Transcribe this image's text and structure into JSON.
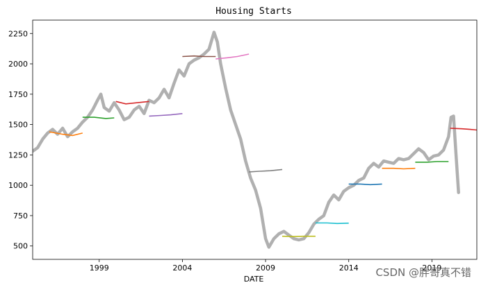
{
  "chart_data": {
    "type": "line",
    "title": "Housing Starts",
    "xlabel": "DATE",
    "ylabel": "",
    "xlim": [
      1995.0,
      2021.7
    ],
    "ylim": [
      390,
      2360
    ],
    "yticks": [
      500,
      750,
      1000,
      1250,
      1500,
      1750,
      2000,
      2250
    ],
    "xticks": [
      {
        "value": 1999,
        "label": "1999"
      },
      {
        "value": 2004,
        "label": "2004"
      },
      {
        "value": 2009,
        "label": "2009"
      },
      {
        "value": 2014,
        "label": "2014"
      },
      {
        "value": 2019,
        "label": "2019"
      }
    ],
    "grid": false,
    "actual": {
      "color": "#b0b0b0",
      "points": [
        [
          1995.0,
          1280
        ],
        [
          1995.3,
          1310
        ],
        [
          1995.6,
          1380
        ],
        [
          1995.9,
          1430
        ],
        [
          1996.2,
          1460
        ],
        [
          1996.5,
          1420
        ],
        [
          1996.8,
          1470
        ],
        [
          1997.1,
          1400
        ],
        [
          1997.4,
          1440
        ],
        [
          1997.7,
          1470
        ],
        [
          1998.0,
          1520
        ],
        [
          1998.3,
          1560
        ],
        [
          1998.6,
          1620
        ],
        [
          1998.9,
          1700
        ],
        [
          1999.1,
          1750
        ],
        [
          1999.3,
          1640
        ],
        [
          1999.6,
          1610
        ],
        [
          1999.9,
          1680
        ],
        [
          2000.2,
          1620
        ],
        [
          2000.5,
          1540
        ],
        [
          2000.8,
          1560
        ],
        [
          2001.1,
          1620
        ],
        [
          2001.4,
          1650
        ],
        [
          2001.7,
          1590
        ],
        [
          2002.0,
          1700
        ],
        [
          2002.3,
          1680
        ],
        [
          2002.6,
          1720
        ],
        [
          2002.9,
          1790
        ],
        [
          2003.2,
          1720
        ],
        [
          2003.5,
          1840
        ],
        [
          2003.8,
          1950
        ],
        [
          2004.1,
          1900
        ],
        [
          2004.4,
          2000
        ],
        [
          2004.7,
          2030
        ],
        [
          2005.0,
          2050
        ],
        [
          2005.3,
          2080
        ],
        [
          2005.6,
          2120
        ],
        [
          2005.9,
          2260
        ],
        [
          2006.1,
          2180
        ],
        [
          2006.3,
          2000
        ],
        [
          2006.6,
          1800
        ],
        [
          2006.9,
          1620
        ],
        [
          2007.2,
          1500
        ],
        [
          2007.5,
          1380
        ],
        [
          2007.8,
          1200
        ],
        [
          2008.1,
          1060
        ],
        [
          2008.4,
          960
        ],
        [
          2008.7,
          810
        ],
        [
          2009.0,
          560
        ],
        [
          2009.2,
          490
        ],
        [
          2009.5,
          560
        ],
        [
          2009.8,
          600
        ],
        [
          2010.1,
          620
        ],
        [
          2010.4,
          590
        ],
        [
          2010.7,
          560
        ],
        [
          2011.0,
          550
        ],
        [
          2011.3,
          560
        ],
        [
          2011.6,
          610
        ],
        [
          2011.9,
          680
        ],
        [
          2012.2,
          720
        ],
        [
          2012.5,
          750
        ],
        [
          2012.8,
          860
        ],
        [
          2013.1,
          920
        ],
        [
          2013.4,
          880
        ],
        [
          2013.7,
          950
        ],
        [
          2014.0,
          980
        ],
        [
          2014.3,
          1000
        ],
        [
          2014.6,
          1040
        ],
        [
          2014.9,
          1060
        ],
        [
          2015.2,
          1140
        ],
        [
          2015.5,
          1180
        ],
        [
          2015.8,
          1150
        ],
        [
          2016.1,
          1200
        ],
        [
          2016.4,
          1190
        ],
        [
          2016.7,
          1180
        ],
        [
          2017.0,
          1220
        ],
        [
          2017.3,
          1210
        ],
        [
          2017.6,
          1220
        ],
        [
          2017.9,
          1260
        ],
        [
          2018.2,
          1300
        ],
        [
          2018.5,
          1270
        ],
        [
          2018.8,
          1210
        ],
        [
          2019.1,
          1240
        ],
        [
          2019.4,
          1250
        ],
        [
          2019.7,
          1290
        ],
        [
          2020.0,
          1400
        ],
        [
          2020.15,
          1560
        ],
        [
          2020.3,
          1570
        ],
        [
          2020.45,
          1250
        ],
        [
          2020.6,
          940
        ]
      ]
    },
    "series": [
      {
        "color": "#ff7f0e",
        "points": [
          [
            1996.0,
            1440
          ],
          [
            1996.8,
            1420
          ],
          [
            1997.4,
            1410
          ],
          [
            1998.0,
            1430
          ]
        ]
      },
      {
        "color": "#2ca02c",
        "points": [
          [
            1998.0,
            1560
          ],
          [
            1998.7,
            1560
          ],
          [
            1999.4,
            1550
          ],
          [
            1999.9,
            1555
          ]
        ]
      },
      {
        "color": "#d62728",
        "points": [
          [
            2000.0,
            1690
          ],
          [
            2000.6,
            1670
          ],
          [
            2001.3,
            1680
          ],
          [
            2002.0,
            1690
          ]
        ]
      },
      {
        "color": "#9467bd",
        "points": [
          [
            2002.0,
            1570
          ],
          [
            2002.7,
            1575
          ],
          [
            2003.3,
            1580
          ],
          [
            2004.0,
            1590
          ]
        ]
      },
      {
        "color": "#8c564b",
        "points": [
          [
            2004.0,
            2060
          ],
          [
            2004.7,
            2065
          ],
          [
            2005.3,
            2060
          ],
          [
            2006.0,
            2060
          ]
        ]
      },
      {
        "color": "#e377c2",
        "points": [
          [
            2006.0,
            2040
          ],
          [
            2006.7,
            2050
          ],
          [
            2007.3,
            2060
          ],
          [
            2008.0,
            2080
          ]
        ]
      },
      {
        "color": "#7f7f7f",
        "points": [
          [
            2008.0,
            1110
          ],
          [
            2008.6,
            1115
          ],
          [
            2009.3,
            1120
          ],
          [
            2010.0,
            1130
          ]
        ]
      },
      {
        "color": "#bcbd22",
        "points": [
          [
            2010.0,
            580
          ],
          [
            2010.7,
            578
          ],
          [
            2011.3,
            580
          ],
          [
            2012.0,
            580
          ]
        ]
      },
      {
        "color": "#17becf",
        "points": [
          [
            2012.0,
            690
          ],
          [
            2012.7,
            690
          ],
          [
            2013.3,
            685
          ],
          [
            2014.0,
            688
          ]
        ]
      },
      {
        "color": "#1f77b4",
        "points": [
          [
            2014.0,
            1010
          ],
          [
            2014.7,
            1010
          ],
          [
            2015.3,
            1005
          ],
          [
            2016.0,
            1010
          ]
        ]
      },
      {
        "color": "#ff7f0e",
        "points": [
          [
            2016.0,
            1140
          ],
          [
            2016.7,
            1140
          ],
          [
            2017.3,
            1135
          ],
          [
            2018.0,
            1140
          ]
        ]
      },
      {
        "color": "#2ca02c",
        "points": [
          [
            2018.0,
            1190
          ],
          [
            2018.7,
            1190
          ],
          [
            2019.3,
            1195
          ],
          [
            2020.0,
            1195
          ]
        ]
      },
      {
        "color": "#d62728",
        "points": [
          [
            2020.1,
            1470
          ],
          [
            2020.8,
            1465
          ],
          [
            2021.3,
            1460
          ],
          [
            2021.7,
            1455
          ]
        ]
      }
    ]
  },
  "watermark": "CSDN @胖哥真不错"
}
